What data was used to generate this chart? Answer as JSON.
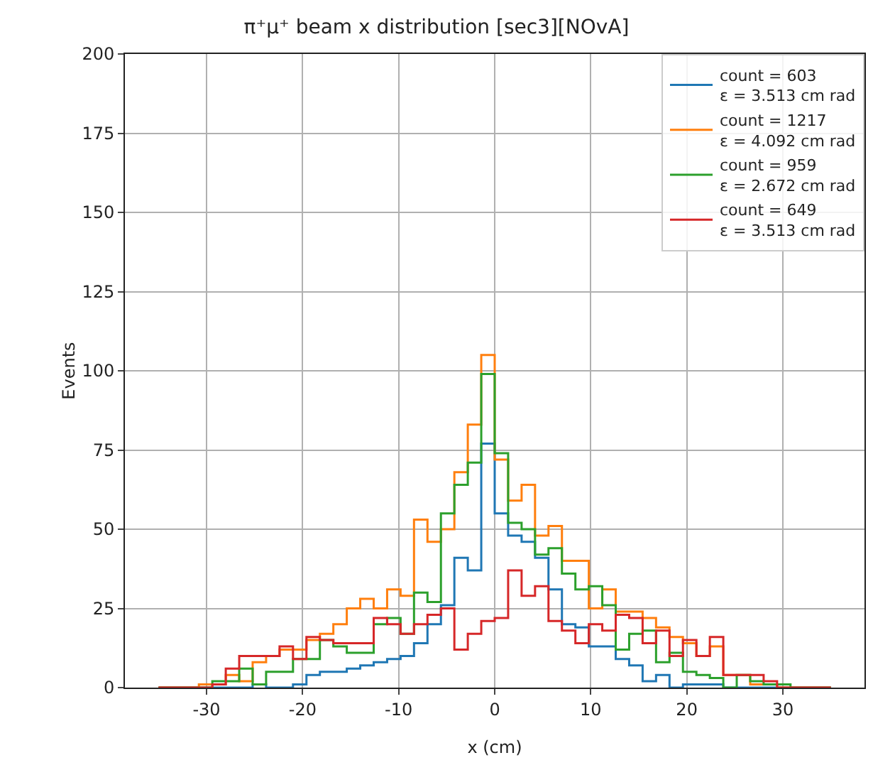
{
  "chart_data": {
    "type": "histogram",
    "title": "π⁺μ⁺ beam x distribution [sec3][NOvA]",
    "xlabel": "x (cm)",
    "ylabel": "Events",
    "bins": [
      -35,
      -33.6,
      -32.2,
      -30.8,
      -29.4,
      -28,
      -26.6,
      -25.2,
      -23.8,
      -22.4,
      -21,
      -19.6,
      -18.2,
      -16.8,
      -15.4,
      -14,
      -12.6,
      -11.2,
      -9.8,
      -8.4,
      -7,
      -5.6,
      -4.2,
      -2.8,
      -1.4,
      0,
      1.4,
      2.8,
      4.2,
      5.6,
      7,
      8.4,
      9.8,
      11.2,
      12.6,
      14,
      15.4,
      16.8,
      18.2,
      19.6,
      21,
      22.4,
      23.8,
      25.2,
      26.6,
      28,
      29.4,
      30.8,
      32.2,
      33.6,
      35
    ],
    "series": [
      {
        "name": "count = 603\nε = 3.513 cm rad",
        "color": "#1f77b4",
        "values": [
          0,
          0,
          0,
          0,
          0,
          0,
          0,
          1,
          0,
          0,
          1,
          4,
          5,
          5,
          6,
          7,
          8,
          9,
          10,
          14,
          20,
          26,
          41,
          37,
          77,
          55,
          48,
          46,
          41,
          31,
          20,
          19,
          13,
          13,
          9,
          7,
          2,
          4,
          0,
          1,
          1,
          1,
          0,
          0,
          0,
          0,
          0,
          0,
          0,
          0
        ]
      },
      {
        "name": "count = 1217\nε = 4.092 cm rad",
        "color": "#ff7f0e",
        "values": [
          0,
          0,
          0,
          1,
          1,
          4,
          2,
          8,
          10,
          12,
          12,
          15,
          17,
          20,
          25,
          28,
          25,
          31,
          29,
          53,
          46,
          50,
          68,
          83,
          105,
          72,
          59,
          64,
          48,
          51,
          40,
          40,
          25,
          31,
          24,
          24,
          22,
          19,
          16,
          14,
          10,
          13,
          4,
          4,
          1,
          1,
          0,
          0,
          0,
          0
        ]
      },
      {
        "name": "count = 959\nε = 2.672 cm rad",
        "color": "#2ca02c",
        "values": [
          0,
          0,
          0,
          0,
          2,
          2,
          6,
          1,
          5,
          5,
          9,
          9,
          15,
          13,
          11,
          11,
          20,
          22,
          17,
          30,
          27,
          55,
          64,
          71,
          99,
          74,
          52,
          50,
          42,
          44,
          36,
          31,
          32,
          26,
          12,
          17,
          18,
          8,
          11,
          5,
          4,
          3,
          0,
          4,
          2,
          1,
          1,
          0,
          0,
          0
        ]
      },
      {
        "name": "count = 649\nε = 3.513 cm rad",
        "color": "#d62728",
        "values": [
          0,
          0,
          0,
          0,
          1,
          6,
          10,
          10,
          10,
          13,
          9,
          16,
          15,
          14,
          14,
          14,
          22,
          20,
          17,
          20,
          23,
          25,
          12,
          17,
          21,
          22,
          37,
          29,
          32,
          21,
          18,
          14,
          20,
          18,
          23,
          22,
          14,
          18,
          10,
          15,
          10,
          16,
          4,
          4,
          4,
          2,
          0,
          0,
          0,
          0
        ]
      }
    ],
    "xlim": [
      -38.5,
      38.5
    ],
    "xticks": [
      -30,
      -20,
      -10,
      0,
      10,
      20,
      30
    ],
    "ylim": [
      0,
      200
    ],
    "yticks": [
      0,
      25,
      50,
      75,
      100,
      125,
      150,
      175,
      200
    ],
    "grid": true,
    "legend": "top right"
  }
}
